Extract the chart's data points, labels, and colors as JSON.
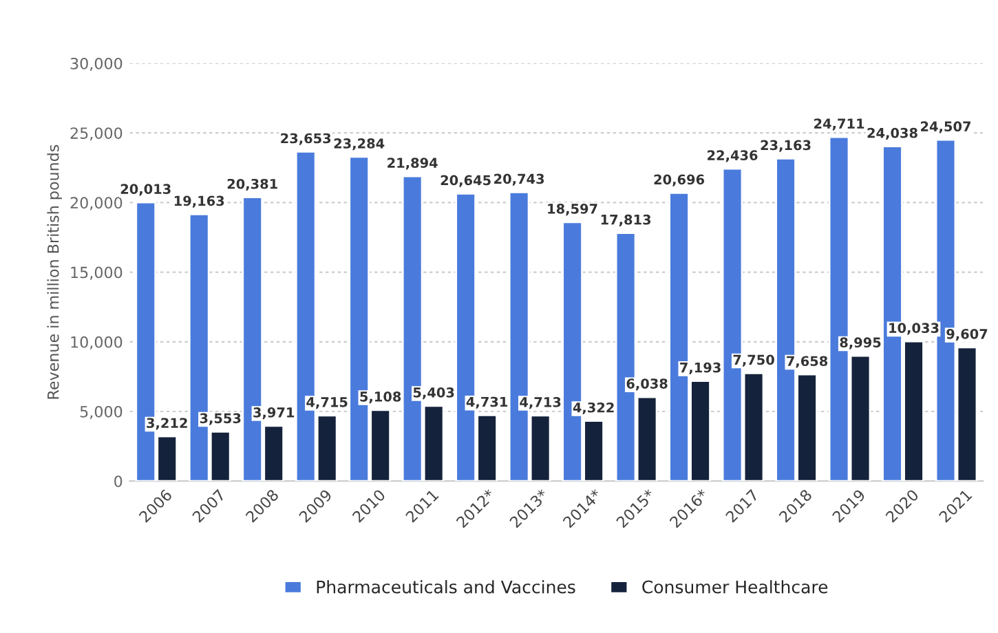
{
  "chart_data": {
    "type": "bar",
    "ylabel": "Revenue in million British pounds",
    "categories": [
      "2006",
      "2007",
      "2008",
      "2009",
      "2010",
      "2011",
      "2012*",
      "2013*",
      "2014*",
      "2015*",
      "2016*",
      "2017",
      "2018",
      "2019",
      "2020",
      "2021"
    ],
    "series": [
      {
        "name": "Pharmaceuticals and Vaccines",
        "color": "#4a7bdc",
        "values": [
          20013,
          19163,
          20381,
          23653,
          23284,
          21894,
          20645,
          20743,
          18597,
          17813,
          20696,
          22436,
          23163,
          24711,
          24038,
          24507
        ],
        "value_labels": [
          "20,013",
          "19,163",
          "20,381",
          "23,653",
          "23,284",
          "21,894",
          "20,645",
          "20,743",
          "18,597",
          "17,813",
          "20,696",
          "22,436",
          "23,163",
          "24,711",
          "24,038",
          "24,507"
        ]
      },
      {
        "name": "Consumer Healthcare",
        "color": "#15223b",
        "values": [
          3212,
          3553,
          3971,
          4715,
          5108,
          5403,
          4731,
          4713,
          4322,
          6038,
          7193,
          7750,
          7658,
          8995,
          10033,
          9607
        ],
        "value_labels": [
          "3,212",
          "3,553",
          "3,971",
          "4,715",
          "5,108",
          "5,403",
          "4,731",
          "4,713",
          "4,322",
          "6,038",
          "7,193",
          "7,750",
          "7,658",
          "8,995",
          "10,033",
          "9,607"
        ]
      }
    ],
    "ylim": [
      0,
      30000
    ],
    "yticks": [
      {
        "value": 0,
        "label": "0"
      },
      {
        "value": 5000,
        "label": "5,000"
      },
      {
        "value": 10000,
        "label": "10,000"
      },
      {
        "value": 15000,
        "label": "15,000"
      },
      {
        "value": 20000,
        "label": "20,000"
      },
      {
        "value": 25000,
        "label": "25,000"
      },
      {
        "value": 30000,
        "label": "30,000"
      }
    ],
    "grid": "y",
    "legend": "bottom"
  }
}
